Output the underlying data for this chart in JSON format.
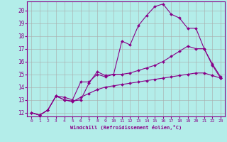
{
  "xlabel": "Windchill (Refroidissement éolien,°C)",
  "background_color": "#b3ede9",
  "grid_color": "#aaaaaa",
  "line_color": "#880088",
  "xlim": [
    -0.5,
    23.5
  ],
  "ylim": [
    11.7,
    20.7
  ],
  "xticks": [
    0,
    1,
    2,
    3,
    4,
    5,
    6,
    7,
    8,
    9,
    10,
    11,
    12,
    13,
    14,
    15,
    16,
    17,
    18,
    19,
    20,
    21,
    22,
    23
  ],
  "yticks": [
    12,
    13,
    14,
    15,
    16,
    17,
    18,
    19,
    20
  ],
  "series": [
    [
      12.0,
      11.8,
      12.2,
      13.3,
      13.2,
      13.0,
      14.4,
      14.4,
      15.0,
      14.8,
      15.0,
      17.6,
      17.3,
      18.8,
      19.6,
      20.3,
      20.5,
      19.7,
      19.4,
      18.6,
      18.6,
      17.0,
      15.7,
      14.7
    ],
    [
      12.0,
      11.8,
      12.2,
      13.3,
      13.0,
      12.9,
      13.0,
      14.3,
      15.2,
      14.9,
      15.0,
      15.0,
      15.1,
      15.3,
      15.5,
      15.7,
      16.0,
      16.4,
      16.8,
      17.2,
      17.0,
      17.0,
      15.8,
      14.8
    ],
    [
      12.0,
      11.8,
      12.2,
      13.3,
      13.0,
      12.85,
      13.2,
      13.5,
      13.8,
      14.0,
      14.1,
      14.2,
      14.3,
      14.4,
      14.5,
      14.6,
      14.7,
      14.8,
      14.9,
      15.0,
      15.1,
      15.1,
      14.9,
      14.7
    ]
  ]
}
